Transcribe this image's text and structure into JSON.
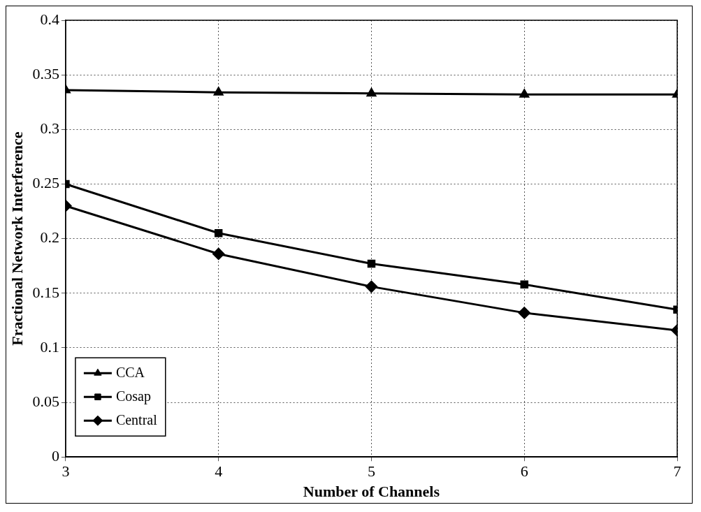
{
  "chart_data": {
    "type": "line",
    "xlabel": "Number of Channels",
    "ylabel": "Fractional Network Interference",
    "x": [
      3,
      4,
      5,
      6,
      7
    ],
    "xlim": [
      3,
      7
    ],
    "xticks": [
      3,
      4,
      5,
      6,
      7
    ],
    "ylim": [
      0,
      0.4
    ],
    "yticks": [
      0,
      0.05,
      0.1,
      0.15,
      0.2,
      0.25,
      0.3,
      0.35,
      0.4
    ],
    "grid": true,
    "legend": "bottom left",
    "line_style": "solid",
    "series": [
      {
        "name": "CCA",
        "color": "#000000",
        "marker": "triangle",
        "values": [
          0.336,
          0.334,
          0.333,
          0.332,
          0.332
        ]
      },
      {
        "name": "Cosap",
        "color": "#000000",
        "marker": "square",
        "values": [
          0.25,
          0.205,
          0.177,
          0.158,
          0.135
        ]
      },
      {
        "name": "Central",
        "color": "#000000",
        "marker": "diamond",
        "values": [
          0.23,
          0.186,
          0.156,
          0.132,
          0.116
        ]
      }
    ]
  }
}
